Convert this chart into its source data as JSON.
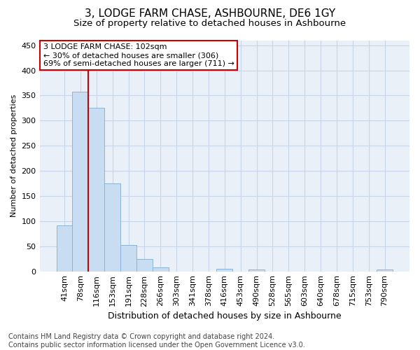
{
  "title": "3, LODGE FARM CHASE, ASHBOURNE, DE6 1GY",
  "subtitle": "Size of property relative to detached houses in Ashbourne",
  "xlabel": "Distribution of detached houses by size in Ashbourne",
  "ylabel": "Number of detached properties",
  "categories": [
    "41sqm",
    "78sqm",
    "116sqm",
    "153sqm",
    "191sqm",
    "228sqm",
    "266sqm",
    "303sqm",
    "341sqm",
    "378sqm",
    "416sqm",
    "453sqm",
    "490sqm",
    "528sqm",
    "565sqm",
    "603sqm",
    "640sqm",
    "678sqm",
    "715sqm",
    "753sqm",
    "790sqm"
  ],
  "values": [
    91,
    357,
    325,
    175,
    53,
    25,
    8,
    0,
    0,
    0,
    5,
    0,
    4,
    0,
    0,
    0,
    0,
    0,
    0,
    0,
    4
  ],
  "bar_color": "#c9ddf2",
  "bar_edge_color": "#8ab4d8",
  "vline_x_index": 1.5,
  "vline_color": "#cc0000",
  "annotation_text": "3 LODGE FARM CHASE: 102sqm\n← 30% of detached houses are smaller (306)\n69% of semi-detached houses are larger (711) →",
  "annotation_box_facecolor": "white",
  "annotation_box_edgecolor": "#cc0000",
  "ylim": [
    0,
    460
  ],
  "yticks": [
    0,
    50,
    100,
    150,
    200,
    250,
    300,
    350,
    400,
    450
  ],
  "grid_color": "#c8d4e8",
  "bg_color": "#eaf0f8",
  "footnote": "Contains HM Land Registry data © Crown copyright and database right 2024.\nContains public sector information licensed under the Open Government Licence v3.0.",
  "title_fontsize": 11,
  "subtitle_fontsize": 9.5,
  "xlabel_fontsize": 9,
  "ylabel_fontsize": 8,
  "tick_fontsize": 8,
  "footnote_fontsize": 7,
  "annotation_fontsize": 8
}
